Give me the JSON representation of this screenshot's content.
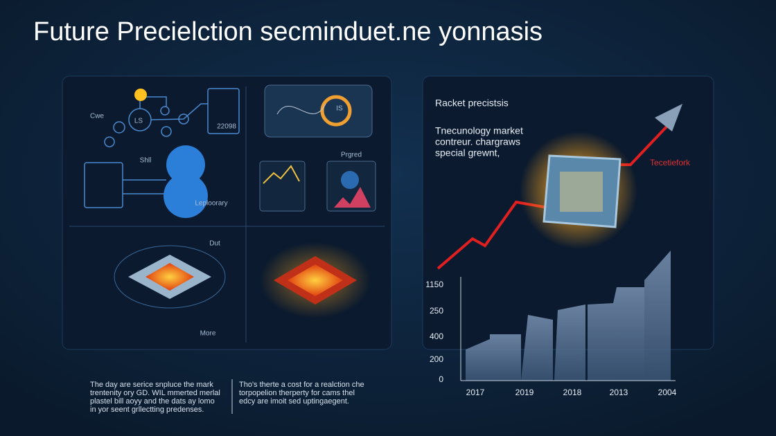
{
  "title": "Future Precielction secminduet.ne yonnasis",
  "left_panel": {
    "labels": [
      "Cwe",
      "LS",
      "22098",
      "IS",
      "Shll",
      "Prgred",
      "Leploorary",
      "Dut",
      "More"
    ]
  },
  "right_panel": {
    "heading": "Racket precistsis",
    "description": [
      "Tnecunology market",
      "contreur. chargraws",
      "special grewnt,"
    ],
    "arrow_label": "Tecetiefork"
  },
  "bar_chart": {
    "y_labels": [
      "1150",
      "250",
      "400",
      "200",
      "0"
    ],
    "x_labels": [
      "2017",
      "2019",
      "2018",
      "2013",
      "2004"
    ]
  },
  "footer": {
    "columns": [
      [
        "The day are serice snpluce the mark",
        "trentenity ory GD. WIL mmerted merlal",
        "plastel bill aoyy and the dats ay lomo",
        "in yor seent grllectting predenses."
      ],
      [
        "Tho's therte a cost for a realction che",
        "torpopelion therperty for cams thel",
        "edcy are imoit sed uptingaegent."
      ]
    ]
  }
}
